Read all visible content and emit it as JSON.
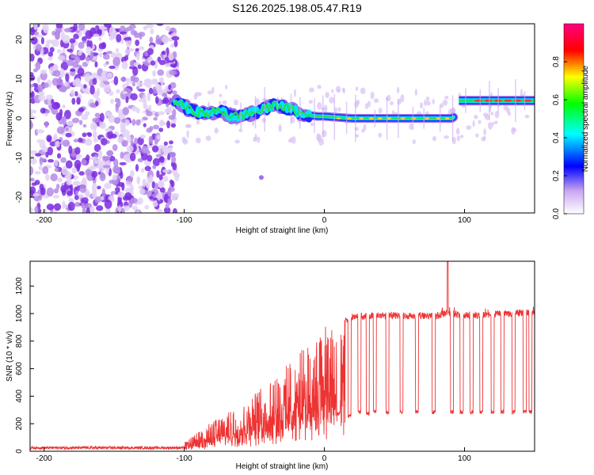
{
  "title": "S126.2025.198.05.47.R19",
  "colors": {
    "snr_line": "#ee3333",
    "colormap": [
      "#ffffff",
      "#e6d2f5",
      "#8a2be2",
      "#0000ff",
      "#00ffff",
      "#00ff00",
      "#ffff00",
      "#ff0000",
      "#ff0080"
    ]
  },
  "chart_data": [
    {
      "type": "heatmap",
      "title": "S126.2025.198.05.47.R19",
      "xlabel": "Height of straight line (km)",
      "ylabel": "Frequency (Hz)",
      "xlim": [
        -210,
        150
      ],
      "ylim": [
        -24,
        24
      ],
      "x_ticks": [
        "-200",
        "-100",
        "0",
        "100"
      ],
      "y_ticks": [
        "-20",
        "-10",
        "0",
        "10",
        "20"
      ],
      "colorbar": {
        "label": "Normalized spectral amplitude",
        "range": [
          0,
          1
        ],
        "ticks": [
          "0.0",
          "0.2",
          "0.4",
          "0.6",
          "0.8"
        ]
      },
      "ridge": {
        "description_points_x": [
          -105,
          -95,
          -85,
          -75,
          -65,
          -55,
          -45,
          -35,
          -25,
          -15,
          -5,
          0,
          20,
          40,
          60,
          80,
          92,
          95,
          110,
          130,
          150
        ],
        "frequency_hz": [
          4,
          2,
          1,
          2,
          0.5,
          1,
          2,
          3.5,
          2.5,
          1,
          0.5,
          0.5,
          0,
          0,
          0,
          0,
          0,
          4.5,
          4.5,
          4.5,
          4.5
        ]
      },
      "noise_region_x": [
        -210,
        -105
      ],
      "grid": false
    },
    {
      "type": "line",
      "xlabel": "Height of straight line (km)",
      "ylabel": "SNR (10 * v/v)",
      "xlim": [
        -210,
        150
      ],
      "ylim": [
        0,
        1380
      ],
      "x_ticks": [
        "-200",
        "-100",
        "0",
        "100"
      ],
      "y_ticks": [
        "0",
        "200",
        "400",
        "600",
        "800",
        "1000",
        "1200"
      ],
      "series": [
        {
          "envelope_x": [
            -210,
            -130,
            -105,
            -95,
            -85,
            -75,
            -65,
            -55,
            -45,
            -35,
            -25,
            -15,
            -5,
            0,
            10,
            20,
            30,
            40,
            60,
            80,
            88,
            100,
            120,
            140,
            150
          ],
          "envelope_y": [
            25,
            25,
            30,
            100,
            180,
            250,
            300,
            380,
            460,
            560,
            650,
            750,
            820,
            900,
            960,
            1000,
            1010,
            1010,
            1010,
            1010,
            1030,
            1010,
            1020,
            1030,
            1030
          ],
          "dropout_x": [
            10,
            18,
            25,
            31,
            36,
            45,
            55,
            66,
            78,
            91,
            98,
            105,
            112,
            120,
            127,
            135,
            143,
            147
          ],
          "dropout_y": [
            260,
            240,
            270,
            260,
            270,
            270,
            270,
            270,
            270,
            270,
            270,
            270,
            270,
            270,
            270,
            270,
            270,
            270
          ],
          "spike": {
            "x": 88,
            "y": 1380
          }
        }
      ],
      "grid": false
    }
  ]
}
